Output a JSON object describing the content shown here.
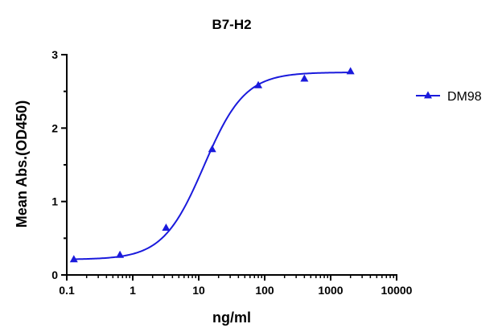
{
  "chart_data": {
    "type": "scatter",
    "title": "B7-H2",
    "xlabel": "ng/ml",
    "ylabel": "Mean Abs.(OD450)",
    "x_scale": "log",
    "xlim": [
      0.1,
      10000
    ],
    "ylim": [
      0,
      3
    ],
    "x_ticks": [
      {
        "value": 0.1,
        "label": "0.1"
      },
      {
        "value": 1,
        "label": "1"
      },
      {
        "value": 10,
        "label": "10"
      },
      {
        "value": 100,
        "label": "100"
      },
      {
        "value": 1000,
        "label": "1000"
      },
      {
        "value": 10000,
        "label": "10000"
      }
    ],
    "y_ticks": [
      {
        "value": 0,
        "label": "0"
      },
      {
        "value": 1,
        "label": "1"
      },
      {
        "value": 2,
        "label": "2"
      },
      {
        "value": 3,
        "label": "3"
      }
    ],
    "grid": false,
    "legend_position": "right",
    "series": [
      {
        "name": "DM98",
        "color": "#1a1adc",
        "marker": "triangle",
        "fit": "four-parameter logistic",
        "points": [
          {
            "x": 0.128,
            "y": 0.21
          },
          {
            "x": 0.64,
            "y": 0.27
          },
          {
            "x": 3.2,
            "y": 0.64
          },
          {
            "x": 16,
            "y": 1.71
          },
          {
            "x": 80,
            "y": 2.58
          },
          {
            "x": 400,
            "y": 2.67
          },
          {
            "x": 2000,
            "y": 2.77
          }
        ],
        "curve_params": {
          "bottom": 0.21,
          "top": 2.76,
          "ec50": 12,
          "hill": 1.4
        }
      }
    ]
  }
}
